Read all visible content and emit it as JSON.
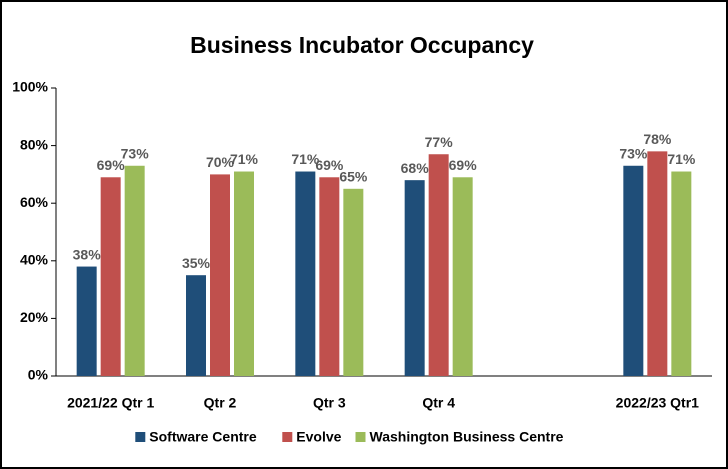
{
  "chart_data": {
    "type": "bar",
    "title": "Business Incubator Occupancy",
    "categories": [
      "2021/22 Qtr 1",
      "Qtr 2",
      "Qtr 3",
      "Qtr 4",
      null,
      "2022/23 Qtr1"
    ],
    "series": [
      {
        "name": "Software Centre",
        "color": "#1f4e79",
        "values": [
          38,
          35,
          71,
          68,
          null,
          73
        ],
        "value_labels": [
          "38%",
          "35%",
          "71%",
          "68%",
          null,
          "73%"
        ]
      },
      {
        "name": "Evolve",
        "color": "#c0504d",
        "values": [
          69,
          70,
          69,
          77,
          null,
          78
        ],
        "value_labels": [
          "69%",
          "70%",
          "69%",
          "77%",
          null,
          "78%"
        ]
      },
      {
        "name": "Washington Business Centre",
        "color": "#9bbb59",
        "values": [
          73,
          71,
          65,
          69,
          null,
          71
        ],
        "value_labels": [
          "73%",
          "71%",
          "65%",
          "69%",
          null,
          "71%"
        ]
      }
    ],
    "ylim": [
      0,
      100
    ],
    "yticks": [
      {
        "value": 0,
        "label": "0%"
      },
      {
        "value": 20,
        "label": "20%"
      },
      {
        "value": 40,
        "label": "40%"
      },
      {
        "value": 60,
        "label": "60%"
      },
      {
        "value": 80,
        "label": "80%"
      },
      {
        "value": 100,
        "label": "100%"
      }
    ],
    "grid": false,
    "legend": "bottom"
  }
}
